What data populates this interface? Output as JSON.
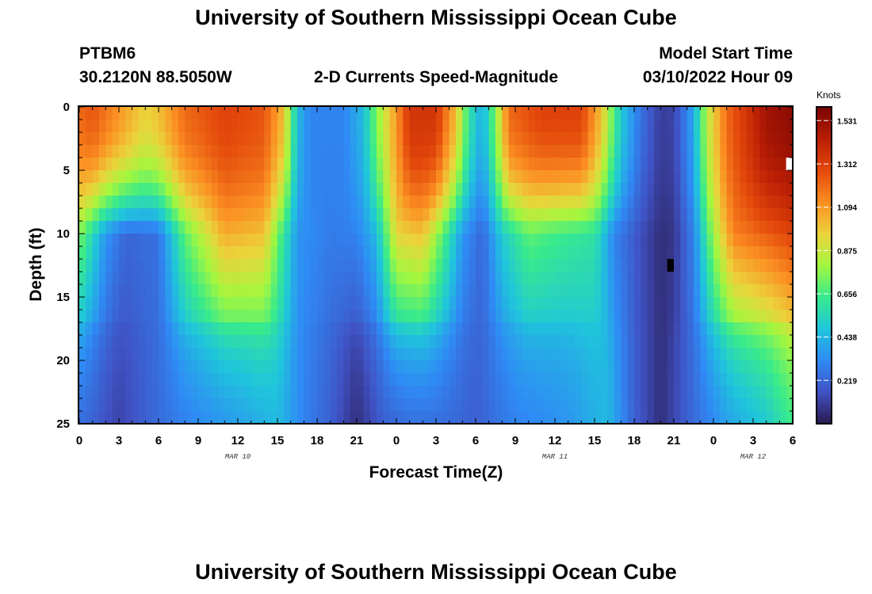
{
  "page": {
    "title_top": "University of Southern Mississippi Ocean Cube",
    "title_bottom": "University of Southern Mississippi Ocean Cube"
  },
  "station": {
    "id": "PTBM6",
    "coords": "30.2120N  88.5050W"
  },
  "model": {
    "start_label": "Model Start Time",
    "start_value": "03/10/2022 Hour 09"
  },
  "chart_data": {
    "type": "heatmap",
    "title": "2-D Currents Speed-Magnitude",
    "xlabel": "Forecast Time(Z)",
    "ylabel": "Depth (ft)",
    "x_range_hours": [
      0,
      54
    ],
    "y_range_ft": [
      0,
      25
    ],
    "y_inverted": true,
    "x_ticks": [
      {
        "hour": 0,
        "label": "0"
      },
      {
        "hour": 3,
        "label": "3"
      },
      {
        "hour": 6,
        "label": "6"
      },
      {
        "hour": 9,
        "label": "9"
      },
      {
        "hour": 12,
        "label": "12"
      },
      {
        "hour": 15,
        "label": "15"
      },
      {
        "hour": 18,
        "label": "18"
      },
      {
        "hour": 21,
        "label": "21"
      },
      {
        "hour": 24,
        "label": "0"
      },
      {
        "hour": 27,
        "label": "3"
      },
      {
        "hour": 30,
        "label": "6"
      },
      {
        "hour": 33,
        "label": "9"
      },
      {
        "hour": 36,
        "label": "12"
      },
      {
        "hour": 39,
        "label": "15"
      },
      {
        "hour": 42,
        "label": "18"
      },
      {
        "hour": 45,
        "label": "21"
      },
      {
        "hour": 48,
        "label": "0"
      },
      {
        "hour": 51,
        "label": "3"
      },
      {
        "hour": 54,
        "label": "6"
      }
    ],
    "y_ticks": [
      {
        "value": 0,
        "label": "0"
      },
      {
        "value": 5,
        "label": "5"
      },
      {
        "value": 10,
        "label": "10"
      },
      {
        "value": 15,
        "label": "15"
      },
      {
        "value": 20,
        "label": "20"
      },
      {
        "value": 25,
        "label": "25"
      }
    ],
    "date_labels": [
      {
        "hour": 12,
        "label": "MAR 10"
      },
      {
        "hour": 36,
        "label": "MAR 11"
      },
      {
        "hour": 51,
        "label": "MAR 12"
      }
    ],
    "colorbar": {
      "units": "Knots",
      "min": 0,
      "max": 1.6,
      "ticks": [
        "1.531",
        "1.312",
        "1.094",
        "0.875",
        "0.656",
        "0.438",
        "0.219"
      ],
      "tick_values": [
        1.531,
        1.312,
        1.094,
        0.875,
        0.656,
        0.438,
        0.219
      ]
    },
    "grid_resolution": {
      "time_step_hours": 0.5,
      "depth_step_ft": 1
    },
    "speed_field": {
      "description": "current speed (knots) at forecast hour h and depth d ft",
      "surface_speed_vs_hour": [
        [
          0,
          1.2
        ],
        [
          1,
          1.25
        ],
        [
          3,
          1.1
        ],
        [
          5,
          0.95
        ],
        [
          6,
          1.0
        ],
        [
          8,
          1.2
        ],
        [
          11,
          1.3
        ],
        [
          14,
          1.25
        ],
        [
          15.5,
          1.0
        ],
        [
          16.5,
          0.45
        ],
        [
          17.5,
          0.3
        ],
        [
          20,
          0.3
        ],
        [
          21.5,
          0.45
        ],
        [
          22.5,
          0.75
        ],
        [
          24,
          1.1
        ],
        [
          25,
          1.35
        ],
        [
          27,
          1.35
        ],
        [
          28.5,
          1.0
        ],
        [
          29.5,
          0.6
        ],
        [
          30.5,
          0.4
        ],
        [
          31.5,
          0.75
        ],
        [
          32.5,
          1.2
        ],
        [
          35,
          1.3
        ],
        [
          38,
          1.3
        ],
        [
          39.5,
          1.0
        ],
        [
          41,
          0.5
        ],
        [
          42.5,
          0.25
        ],
        [
          44,
          0.1
        ],
        [
          45,
          0.12
        ],
        [
          46.5,
          0.4
        ],
        [
          47.5,
          0.85
        ],
        [
          49,
          1.2
        ],
        [
          52,
          1.5
        ],
        [
          54,
          1.55
        ]
      ],
      "mid_depth_speed_vs_hour": [
        [
          0,
          0.75
        ],
        [
          2,
          0.35
        ],
        [
          3.5,
          0.22
        ],
        [
          6,
          0.25
        ],
        [
          8,
          0.7
        ],
        [
          11,
          1.05
        ],
        [
          14,
          1.0
        ],
        [
          15.5,
          0.6
        ],
        [
          16.5,
          0.35
        ],
        [
          19,
          0.28
        ],
        [
          21,
          0.3
        ],
        [
          22.5,
          0.45
        ],
        [
          24,
          0.95
        ],
        [
          26,
          1.0
        ],
        [
          27.5,
          0.7
        ],
        [
          29,
          0.35
        ],
        [
          30.5,
          0.22
        ],
        [
          32,
          0.5
        ],
        [
          34,
          0.7
        ],
        [
          36,
          0.65
        ],
        [
          39,
          0.6
        ],
        [
          40.5,
          0.3
        ],
        [
          42.5,
          0.15
        ],
        [
          44,
          0.06
        ],
        [
          45,
          0.08
        ],
        [
          46.5,
          0.3
        ],
        [
          48,
          0.8
        ],
        [
          49.5,
          1.15
        ],
        [
          54,
          1.3
        ]
      ],
      "bottom_speed_vs_hour": [
        [
          0,
          0.25
        ],
        [
          3,
          0.12
        ],
        [
          5,
          0.2
        ],
        [
          8,
          0.3
        ],
        [
          12,
          0.38
        ],
        [
          15,
          0.45
        ],
        [
          17,
          0.3
        ],
        [
          19,
          0.2
        ],
        [
          21,
          0.06
        ],
        [
          23,
          0.2
        ],
        [
          25,
          0.25
        ],
        [
          27,
          0.25
        ],
        [
          30,
          0.2
        ],
        [
          33,
          0.3
        ],
        [
          37,
          0.35
        ],
        [
          40,
          0.45
        ],
        [
          42,
          0.2
        ],
        [
          44,
          0.06
        ],
        [
          46,
          0.2
        ],
        [
          49,
          0.38
        ],
        [
          52,
          0.5
        ],
        [
          54,
          0.65
        ]
      ],
      "missing_cells": [
        {
          "hour": 44.5,
          "depth_ft": 12,
          "color": "#000000"
        },
        {
          "hour": 53.5,
          "depth_ft": 4,
          "color": "#ffffff"
        }
      ]
    }
  }
}
